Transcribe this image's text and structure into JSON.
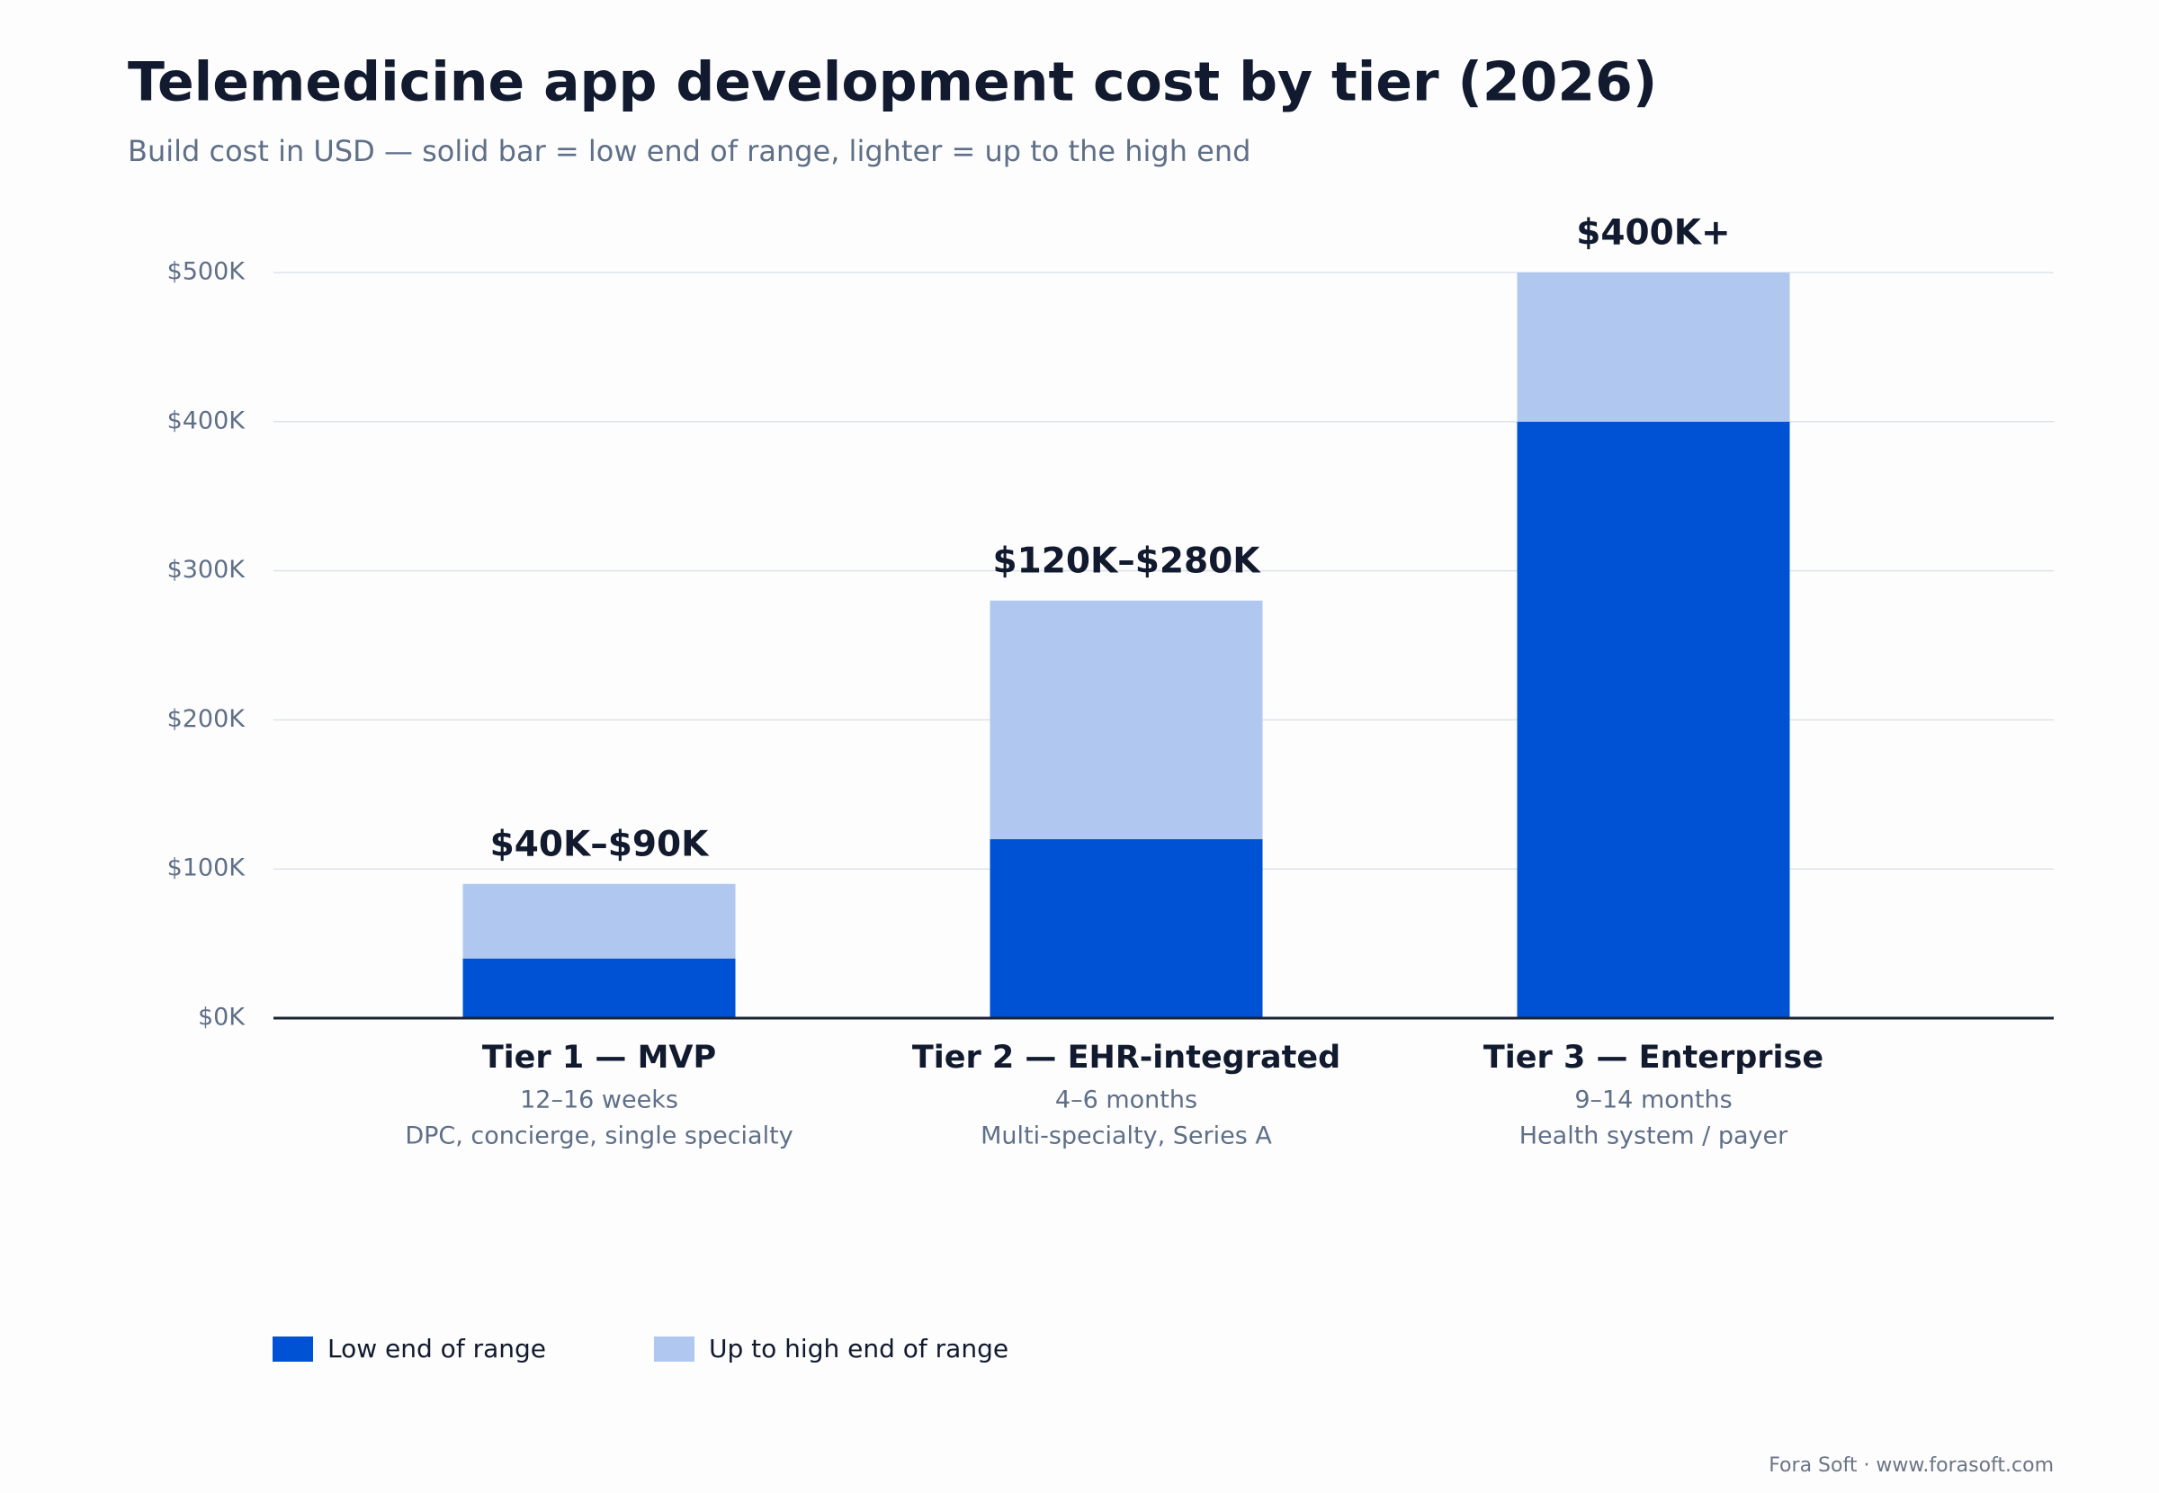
{
  "chart_data": {
    "type": "stacked_bar",
    "title": "Telemedicine app development cost by tier (2026)",
    "subtitle": "Build cost in USD — solid bar = low end of range, lighter = up to the high end",
    "categories": [
      "Tier 1 — MVP",
      "Tier 2 — EHR-integrated",
      "Tier 3 — Enterprise"
    ],
    "timelines": [
      "12–16 weeks",
      "4–6 months",
      "9–14 months"
    ],
    "segments": [
      "DPC, concierge, single specialty",
      "Multi-specialty, Series A",
      "Health system / payer"
    ],
    "annotations": [
      "$40K–$90K",
      "$120K–$280K",
      "$400K+"
    ],
    "series": [
      {
        "name": "Low end of range",
        "color": "#0052d4",
        "values": [
          40,
          120,
          400
        ]
      },
      {
        "name": "Up to high end of range",
        "color": "#b0c8f0",
        "values": [
          50,
          160,
          100
        ]
      }
    ],
    "ylim": [
      0,
      500
    ],
    "yticks": [
      {
        "value": 0,
        "label": "$0K"
      },
      {
        "value": 100,
        "label": "$100K"
      },
      {
        "value": 200,
        "label": "$200K"
      },
      {
        "value": 300,
        "label": "$300K"
      },
      {
        "value": 400,
        "label": "$400K"
      },
      {
        "value": 500,
        "label": "$500K"
      }
    ],
    "grid": true,
    "legend": "bottom-left",
    "source": "Fora Soft · www.forasoft.com"
  }
}
